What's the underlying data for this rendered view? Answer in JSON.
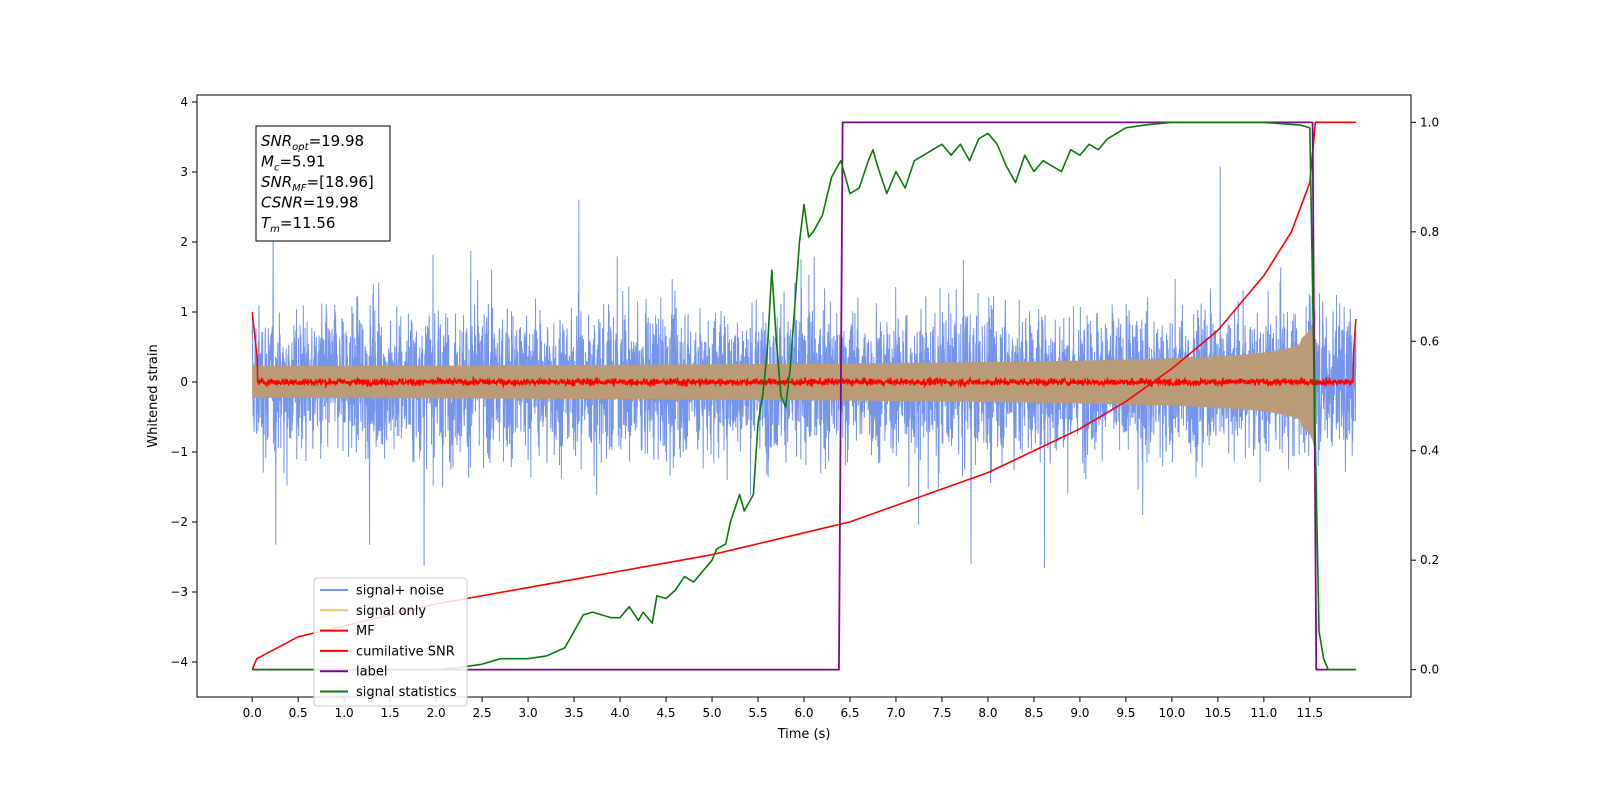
{
  "chart_data": {
    "type": "line",
    "xlabel": "Time (s)",
    "ylabel": "Whitened strain",
    "xlim": [
      -0.6,
      12.6
    ],
    "ylim": [
      -4.5,
      4.1
    ],
    "y2lim": [
      -0.05,
      1.05
    ],
    "x_ticks": [
      0.0,
      0.5,
      1.0,
      1.5,
      2.0,
      2.5,
      3.0,
      3.5,
      4.0,
      4.5,
      5.0,
      5.5,
      6.0,
      6.5,
      7.0,
      7.5,
      8.0,
      8.5,
      9.0,
      9.5,
      10.0,
      10.5,
      11.0,
      11.5
    ],
    "x_tick_labels": [
      "0.0",
      "0.5",
      "1.0",
      "1.5",
      "2.0",
      "2.5",
      "3.0",
      "3.5",
      "4.0",
      "4.5",
      "5.0",
      "5.5",
      "6.0",
      "6.5",
      "7.0",
      "7.5",
      "8.0",
      "8.5",
      "9.0",
      "9.5",
      "10.0",
      "10.5",
      "11.0",
      "11.5"
    ],
    "y_ticks": [
      4,
      3,
      2,
      1,
      0,
      -1,
      -2,
      -3,
      -4
    ],
    "y_tick_labels": [
      "4",
      "3",
      "2",
      "1",
      "0",
      "−1",
      "−2",
      "−3",
      "−4"
    ],
    "y2_ticks": [
      0.0,
      0.2,
      0.4,
      0.6,
      0.8,
      1.0
    ],
    "y2_tick_labels": [
      "0.0",
      "0.2",
      "0.4",
      "0.6",
      "0.8",
      "1.0"
    ],
    "grid": false,
    "legend_position": "lower-left",
    "annotation_lines": [
      {
        "main": "SNR",
        "sub": "opt",
        "rest": "=19.98"
      },
      {
        "main": "M",
        "sub": "c",
        "rest": "=5.91"
      },
      {
        "main": "SNR",
        "sub": "MF",
        "rest": "=[18.96]"
      },
      {
        "main": "CSNR",
        "sub": "",
        "rest": "=19.98"
      },
      {
        "main": "T",
        "sub": "m",
        "rest": "=11.56"
      }
    ],
    "series": [
      {
        "name": "signal+ noise",
        "color": "#6688e8",
        "axis": "left",
        "description": "whitened strain noise, amplitude about ±1.5 with spikes to ±3.5, t 0.0–12.0"
      },
      {
        "name": "signal only",
        "color": "#f7c56e",
        "axis": "left",
        "chirp_start": 0.0,
        "chirp_end": 11.56,
        "final_amplitude": 1.1
      },
      {
        "name": "MF",
        "color": "#ff0000",
        "axis": "left",
        "description": "matched filter output, near 0 with small fluctuations, spikes to 1.0 at t=0.0 and 0.9 at t=12.0"
      },
      {
        "name": "cumilative SNR",
        "color": "#ff0000",
        "axis": "right",
        "x": [
          0.0,
          0.05,
          0.5,
          1.0,
          1.5,
          2.0,
          2.5,
          3.0,
          3.5,
          4.0,
          4.5,
          5.0,
          5.5,
          6.0,
          6.5,
          7.0,
          7.5,
          8.0,
          8.5,
          9.0,
          9.5,
          10.0,
          10.5,
          11.0,
          11.3,
          11.5,
          11.56,
          12.0
        ],
        "y": [
          0.0,
          0.02,
          0.06,
          0.08,
          0.1,
          0.12,
          0.135,
          0.15,
          0.165,
          0.18,
          0.195,
          0.21,
          0.23,
          0.25,
          0.27,
          0.3,
          0.33,
          0.36,
          0.4,
          0.44,
          0.49,
          0.55,
          0.62,
          0.72,
          0.8,
          0.89,
          1.0,
          1.0
        ]
      },
      {
        "name": "label",
        "color": "#7b0a8a",
        "axis": "right",
        "x": [
          0.0,
          6.38,
          6.42,
          11.53,
          11.57,
          12.0
        ],
        "y": [
          0.0,
          0.0,
          1.0,
          1.0,
          0.0,
          0.0
        ]
      },
      {
        "name": "signal statistics",
        "color": "#0a7a0a",
        "axis": "right",
        "x": [
          0.0,
          1.0,
          2.0,
          2.3,
          2.5,
          2.7,
          3.0,
          3.2,
          3.4,
          3.5,
          3.6,
          3.7,
          3.9,
          4.0,
          4.1,
          4.2,
          4.25,
          4.35,
          4.4,
          4.5,
          4.6,
          4.7,
          4.8,
          4.9,
          5.0,
          5.05,
          5.15,
          5.2,
          5.3,
          5.35,
          5.45,
          5.5,
          5.55,
          5.6,
          5.65,
          5.7,
          5.75,
          5.8,
          5.85,
          5.95,
          6.0,
          6.05,
          6.1,
          6.2,
          6.3,
          6.4,
          6.5,
          6.6,
          6.7,
          6.75,
          6.8,
          6.9,
          7.0,
          7.1,
          7.2,
          7.3,
          7.4,
          7.5,
          7.6,
          7.7,
          7.8,
          7.9,
          8.0,
          8.1,
          8.2,
          8.3,
          8.4,
          8.5,
          8.6,
          8.7,
          8.8,
          8.9,
          9.0,
          9.1,
          9.2,
          9.3,
          9.4,
          9.5,
          9.7,
          10.0,
          10.5,
          11.0,
          11.4,
          11.5,
          11.55,
          11.6,
          11.65,
          11.7,
          12.0
        ],
        "y": [
          0.0,
          0.0,
          0.0,
          0.005,
          0.01,
          0.02,
          0.02,
          0.025,
          0.04,
          0.07,
          0.1,
          0.105,
          0.095,
          0.095,
          0.115,
          0.09,
          0.105,
          0.085,
          0.135,
          0.13,
          0.145,
          0.17,
          0.16,
          0.18,
          0.2,
          0.22,
          0.23,
          0.27,
          0.32,
          0.29,
          0.32,
          0.45,
          0.5,
          0.58,
          0.73,
          0.6,
          0.5,
          0.48,
          0.55,
          0.78,
          0.85,
          0.79,
          0.8,
          0.83,
          0.9,
          0.93,
          0.87,
          0.88,
          0.93,
          0.95,
          0.92,
          0.87,
          0.91,
          0.88,
          0.93,
          0.94,
          0.95,
          0.96,
          0.94,
          0.96,
          0.93,
          0.97,
          0.98,
          0.96,
          0.92,
          0.89,
          0.94,
          0.91,
          0.93,
          0.92,
          0.91,
          0.95,
          0.94,
          0.96,
          0.95,
          0.97,
          0.98,
          0.99,
          0.995,
          1.0,
          1.0,
          1.0,
          0.995,
          0.99,
          0.5,
          0.07,
          0.02,
          0.0,
          0.0
        ]
      }
    ]
  }
}
